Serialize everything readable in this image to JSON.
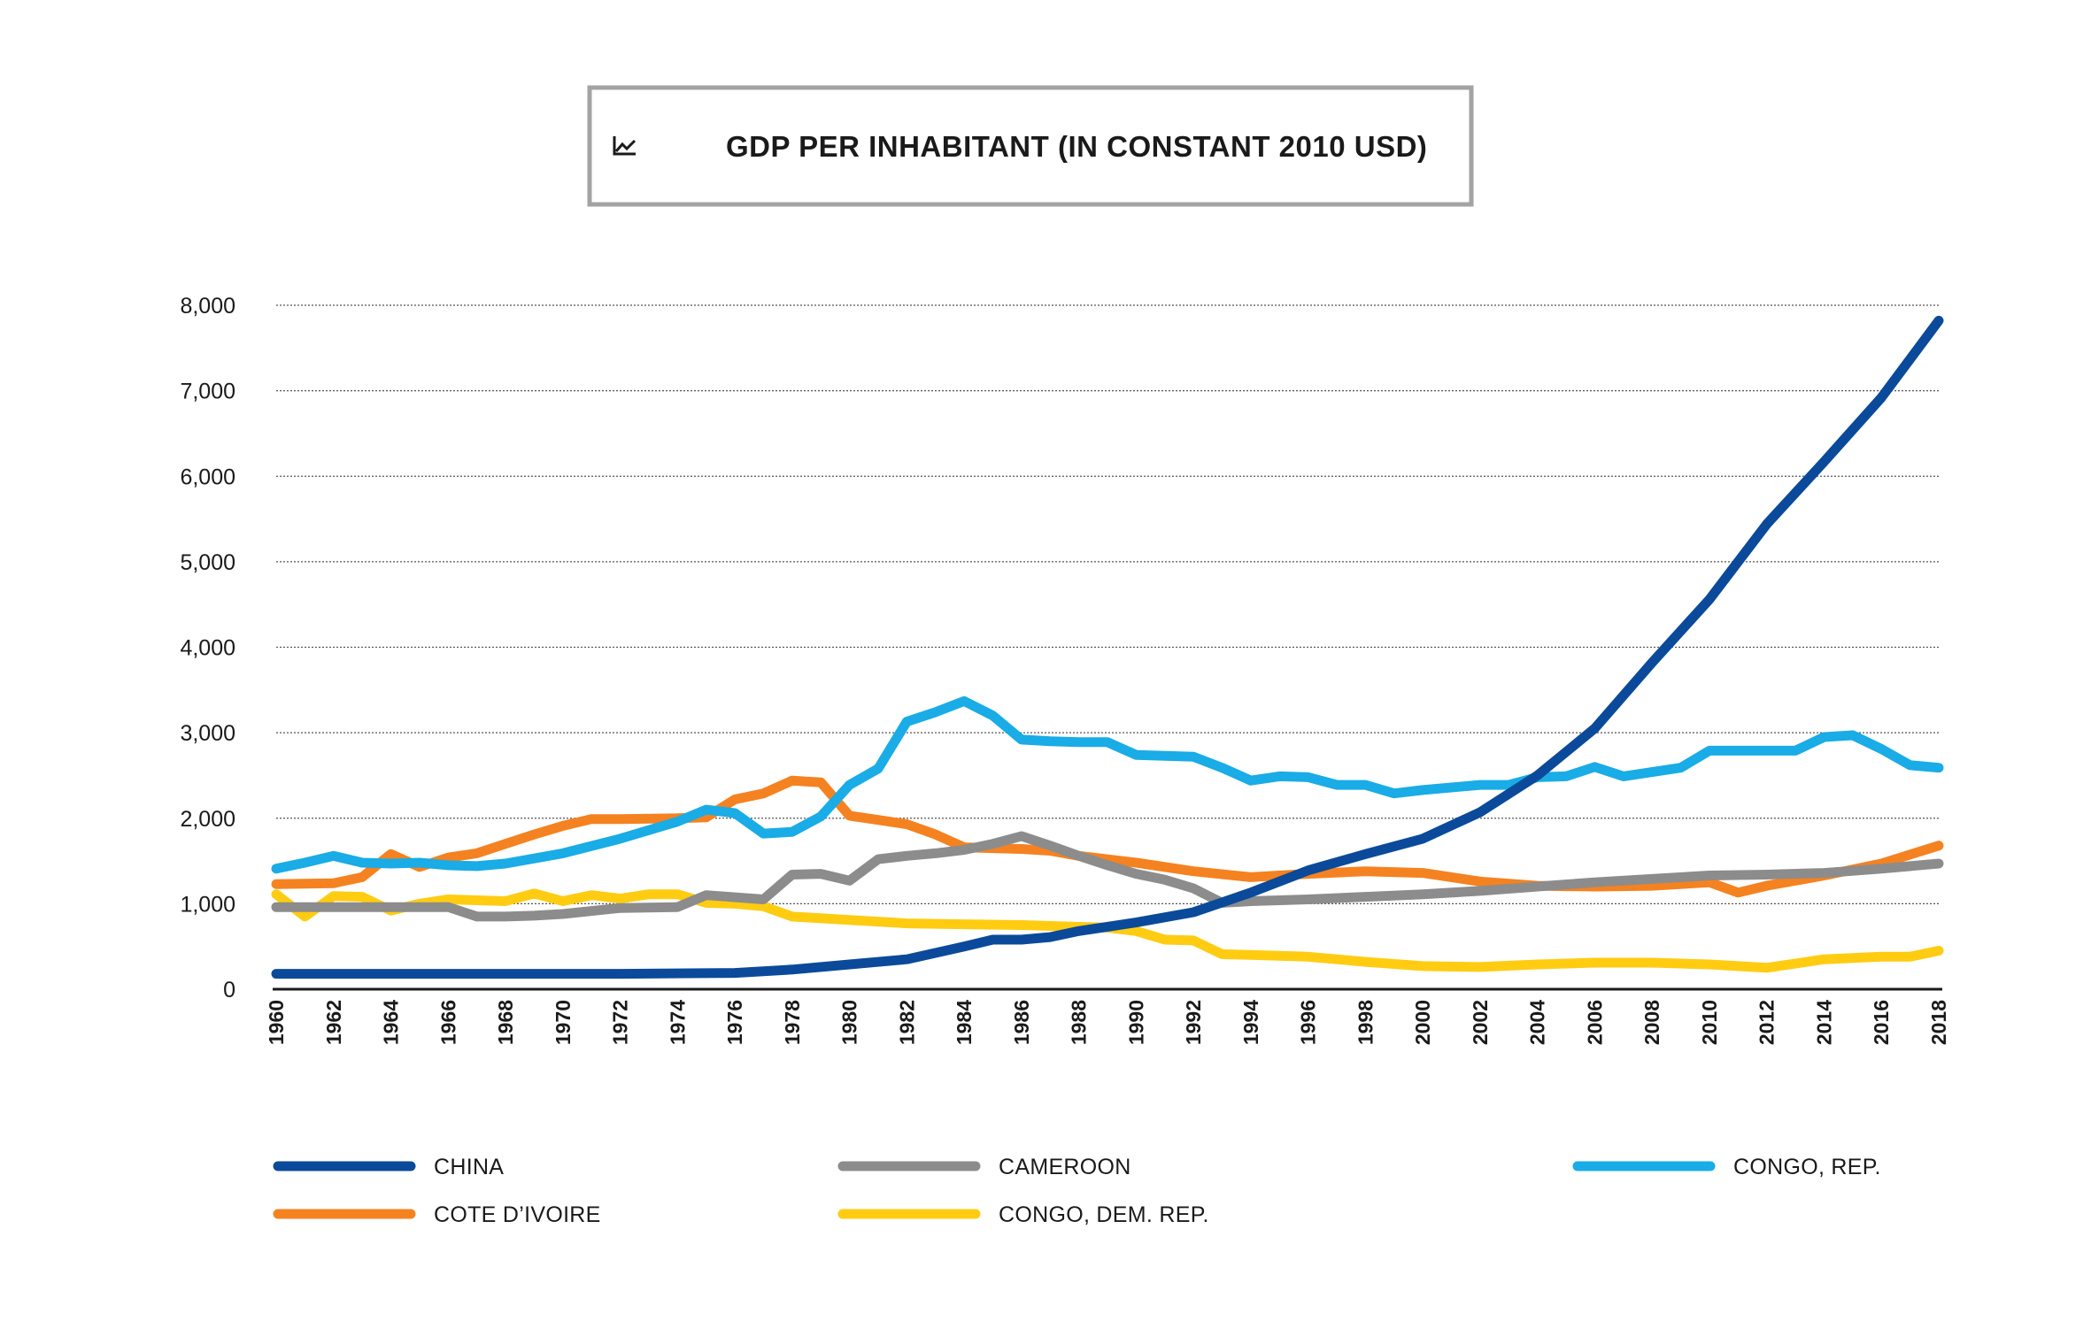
{
  "chart_data": {
    "type": "line",
    "title": "GDP PER INHABITANT (IN CONSTANT 2010 USD)",
    "title_icon": "line-chart-icon",
    "xlabel": "",
    "ylabel": "",
    "ylim": [
      0,
      8000
    ],
    "xlim": [
      1960,
      2018
    ],
    "grid": true,
    "y_ticks": [
      0,
      1000,
      2000,
      3000,
      4000,
      5000,
      6000,
      7000,
      8000
    ],
    "y_tick_labels": [
      "0",
      "1,000",
      "2,000",
      "3,000",
      "4,000",
      "5,000",
      "6,000",
      "7,000",
      "8,000"
    ],
    "x_ticks": [
      1960,
      1962,
      1964,
      1966,
      1968,
      1970,
      1972,
      1974,
      1976,
      1978,
      1980,
      1982,
      1984,
      1986,
      1988,
      1990,
      1992,
      1994,
      1996,
      1998,
      2000,
      2002,
      2004,
      2006,
      2008,
      2010,
      2012,
      2014,
      2016,
      2018
    ],
    "x_tick_labels": [
      "1960",
      "1962",
      "1964",
      "1966",
      "1968",
      "1970",
      "1972",
      "1974",
      "1976",
      "1978",
      "1980",
      "1982",
      "1984",
      "1986",
      "1988",
      "1990",
      "1992",
      "1994",
      "1996",
      "1998",
      "2000",
      "2002",
      "2004",
      "2006",
      "2008",
      "2010",
      "2012",
      "2014",
      "2016",
      "2018"
    ],
    "legend_position": "bottom",
    "series": [
      {
        "name": "CHINA",
        "color": "#0b4a9a",
        "x": [
          1960,
          1966,
          1972,
          1976,
          1978,
          1980,
          1982,
          1984,
          1985,
          1986,
          1987,
          1988,
          1990,
          1992,
          1994,
          1996,
          1998,
          2000,
          2002,
          2004,
          2006,
          2008,
          2010,
          2012,
          2014,
          2016,
          2018
        ],
        "values": [
          180,
          180,
          180,
          190,
          230,
          290,
          350,
          500,
          580,
          580,
          610,
          680,
          780,
          900,
          1130,
          1390,
          1580,
          1760,
          2070,
          2500,
          3050,
          3820,
          4560,
          5440,
          6170,
          6920,
          7820
        ]
      },
      {
        "name": "CAMEROON",
        "color": "#8c8c8c",
        "x": [
          1960,
          1962,
          1964,
          1966,
          1967,
          1968,
          1969,
          1970,
          1972,
          1974,
          1975,
          1977,
          1978,
          1979,
          1980,
          1981,
          1982,
          1983,
          1984,
          1985,
          1986,
          1987,
          1988,
          1989,
          1990,
          1991,
          1992,
          1993,
          1994,
          1996,
          1998,
          2000,
          2002,
          2004,
          2006,
          2008,
          2010,
          2012,
          2014,
          2016,
          2018
        ],
        "values": [
          960,
          960,
          960,
          960,
          850,
          850,
          860,
          880,
          950,
          960,
          1100,
          1050,
          1340,
          1350,
          1270,
          1520,
          1560,
          1590,
          1630,
          1700,
          1790,
          1680,
          1560,
          1450,
          1350,
          1280,
          1180,
          1010,
          1030,
          1050,
          1080,
          1110,
          1150,
          1200,
          1250,
          1290,
          1330,
          1340,
          1360,
          1410,
          1470
        ]
      },
      {
        "name": "CONGO, REP.",
        "color": "#19ace6",
        "x": [
          1960,
          1961,
          1962,
          1963,
          1964,
          1965,
          1966,
          1967,
          1968,
          1970,
          1972,
          1974,
          1975,
          1976,
          1977,
          1978,
          1979,
          1980,
          1981,
          1982,
          1983,
          1984,
          1985,
          1986,
          1987,
          1988,
          1989,
          1990,
          1991,
          1992,
          1993,
          1994,
          1995,
          1996,
          1997,
          1998,
          1999,
          2000,
          2002,
          2003,
          2004,
          2005,
          2006,
          2007,
          2008,
          2009,
          2010,
          2011,
          2012,
          2013,
          2014,
          2015,
          2016,
          2017,
          2018
        ],
        "values": [
          1410,
          1480,
          1560,
          1480,
          1470,
          1480,
          1450,
          1440,
          1470,
          1590,
          1760,
          1960,
          2100,
          2060,
          1820,
          1840,
          2020,
          2390,
          2580,
          3130,
          3240,
          3370,
          3200,
          2920,
          2900,
          2890,
          2890,
          2740,
          2730,
          2720,
          2590,
          2440,
          2490,
          2480,
          2390,
          2390,
          2290,
          2330,
          2390,
          2390,
          2480,
          2490,
          2600,
          2490,
          2540,
          2590,
          2790,
          2790,
          2790,
          2790,
          2950,
          2970,
          2810,
          2620,
          2590
        ]
      },
      {
        "name": "COTE D’IVOIRE",
        "color": "#f58220",
        "x": [
          1960,
          1962,
          1963,
          1964,
          1965,
          1966,
          1967,
          1968,
          1969,
          1970,
          1971,
          1972,
          1974,
          1975,
          1976,
          1977,
          1978,
          1979,
          1980,
          1981,
          1982,
          1983,
          1984,
          1985,
          1986,
          1987,
          1988,
          1990,
          1992,
          1994,
          1996,
          1998,
          2000,
          2002,
          2004,
          2006,
          2008,
          2010,
          2011,
          2012,
          2014,
          2016,
          2018
        ],
        "values": [
          1230,
          1240,
          1310,
          1580,
          1430,
          1540,
          1590,
          1700,
          1810,
          1910,
          1990,
          1990,
          2000,
          2010,
          2220,
          2290,
          2440,
          2420,
          2030,
          1980,
          1930,
          1810,
          1660,
          1650,
          1640,
          1620,
          1560,
          1480,
          1380,
          1310,
          1350,
          1380,
          1360,
          1260,
          1210,
          1200,
          1210,
          1250,
          1130,
          1210,
          1330,
          1470,
          1680
        ]
      },
      {
        "name": "CONGO, DEM. REP.",
        "color": "#ffcc11",
        "x": [
          1960,
          1961,
          1962,
          1963,
          1964,
          1965,
          1966,
          1967,
          1968,
          1969,
          1970,
          1971,
          1972,
          1973,
          1974,
          1975,
          1976,
          1977,
          1978,
          1980,
          1982,
          1984,
          1986,
          1988,
          1989,
          1990,
          1991,
          1992,
          1993,
          1994,
          1996,
          1998,
          2000,
          2002,
          2004,
          2006,
          2008,
          2010,
          2012,
          2014,
          2016,
          2017,
          2018
        ],
        "values": [
          1110,
          850,
          1090,
          1080,
          920,
          1000,
          1050,
          1040,
          1030,
          1120,
          1030,
          1100,
          1060,
          1110,
          1110,
          1010,
          1000,
          970,
          850,
          810,
          770,
          760,
          750,
          730,
          720,
          680,
          580,
          570,
          410,
          400,
          380,
          320,
          270,
          260,
          290,
          310,
          310,
          290,
          250,
          350,
          380,
          380,
          450
        ]
      }
    ]
  }
}
